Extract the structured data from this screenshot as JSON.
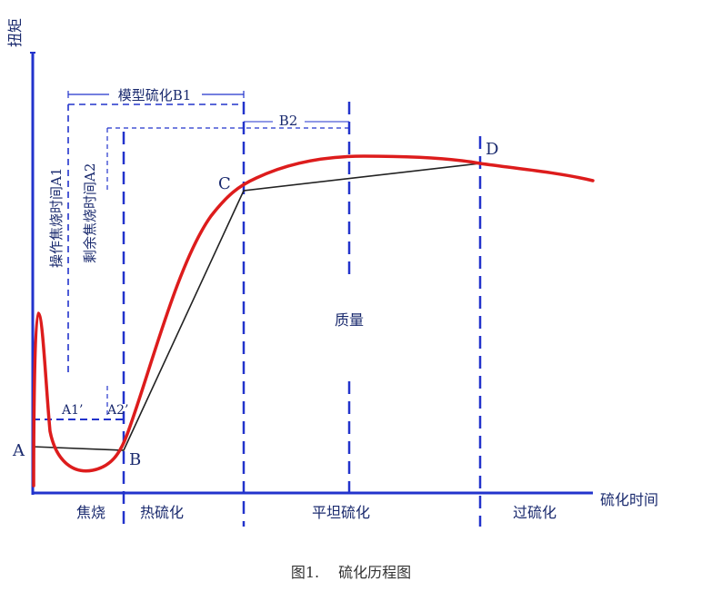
{
  "axis": {
    "y_label": "扭矩",
    "x_label": "硫化时间"
  },
  "points": {
    "A": "A",
    "B": "B",
    "C": "C",
    "D": "D"
  },
  "labels": {
    "model_cure": "模型硫化B1",
    "b2": "B2",
    "op_scorch": "操作焦烧时间A1",
    "rem_scorch": "剩余焦烧时间A2",
    "a1p": "A1’",
    "a2p": "A2’",
    "quality": "质量"
  },
  "zones": {
    "scorch": "焦烧",
    "heat_cure": "热硫化",
    "plateau": "平坦硫化",
    "over_cure": "过硫化"
  },
  "caption": "图1.　 硫化历程图",
  "colors": {
    "axis": "#2233cc",
    "curve": "#dd1c1c",
    "dash": "#2233cc",
    "chord": "#222222",
    "text": "#1a2a6e"
  }
}
